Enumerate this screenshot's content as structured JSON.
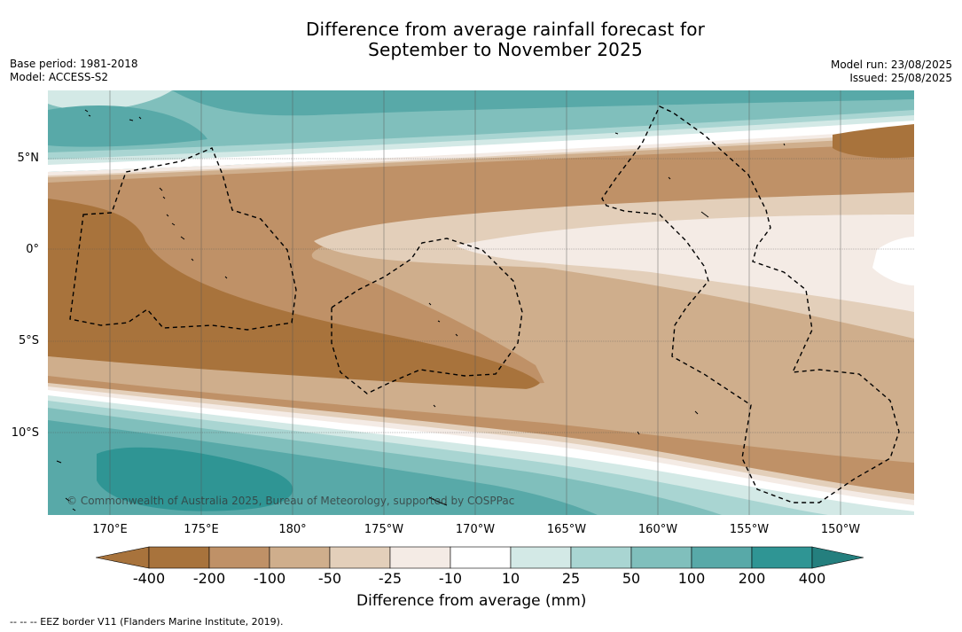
{
  "title_line1": "Difference from average rainfall forecast for",
  "title_line2": "September to November 2025",
  "base_period": "Base period: 1981-2018",
  "model": "Model: ACCESS-S2",
  "model_run": "Model run: 23/08/2025",
  "issued": "Issued: 25/08/2025",
  "lat_labels": [
    "5°N",
    "0°",
    "5°S",
    "10°S"
  ],
  "lon_labels": [
    "170°E",
    "175°E",
    "180°",
    "175°W",
    "170°W",
    "165°W",
    "160°W",
    "155°W",
    "150°W"
  ],
  "credit": "© Commonwealth of Australia 2025, Bureau of Meteorology, supported by COSPPac",
  "colorbar": {
    "ticks": [
      "-400",
      "-200",
      "-100",
      "-50",
      "-25",
      "-10",
      "10",
      "25",
      "50",
      "100",
      "200",
      "400"
    ],
    "colors": [
      "#a8733c",
      "#a8733c",
      "#bf9167",
      "#cfae8c",
      "#e3cfba",
      "#f4ebe5",
      "#ffffff",
      "#d3e9e6",
      "#a9d5d2",
      "#80bfbc",
      "#58a9a8",
      "#2f9594",
      "#247f7e"
    ],
    "title": "Difference from average (mm)"
  },
  "footnote": "-- -- -- EEZ border V11 (Flanders Marine Institute, 2019)."
}
